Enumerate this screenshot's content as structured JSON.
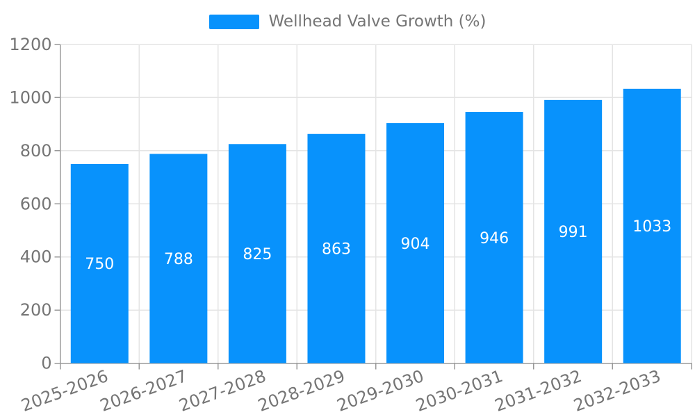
{
  "legend": {
    "label": "Wellhead Valve Growth (%)"
  },
  "chart_data": {
    "type": "bar",
    "title": "Wellhead Valve Growth (%)",
    "categories": [
      "2025-2026",
      "2026-2027",
      "2027-2028",
      "2028-2029",
      "2029-2030",
      "2030-2031",
      "2031-2032",
      "2032-2033"
    ],
    "values": [
      750,
      788,
      825,
      863,
      904,
      946,
      991,
      1033
    ],
    "series_name": "Wellhead Valve Growth (%)",
    "xlabel": "",
    "ylabel": "",
    "ylim": [
      0,
      1200
    ],
    "yticks": [
      0,
      200,
      400,
      600,
      800,
      1000,
      1200
    ],
    "grid": true,
    "legend_position": "top",
    "colors": {
      "bar": "#0892fc",
      "bar_value_label": "#ffffff",
      "axis_text": "#757575",
      "axis_line": "#999999",
      "grid_line": "#e4e4e4",
      "background": "#ffffff"
    }
  }
}
